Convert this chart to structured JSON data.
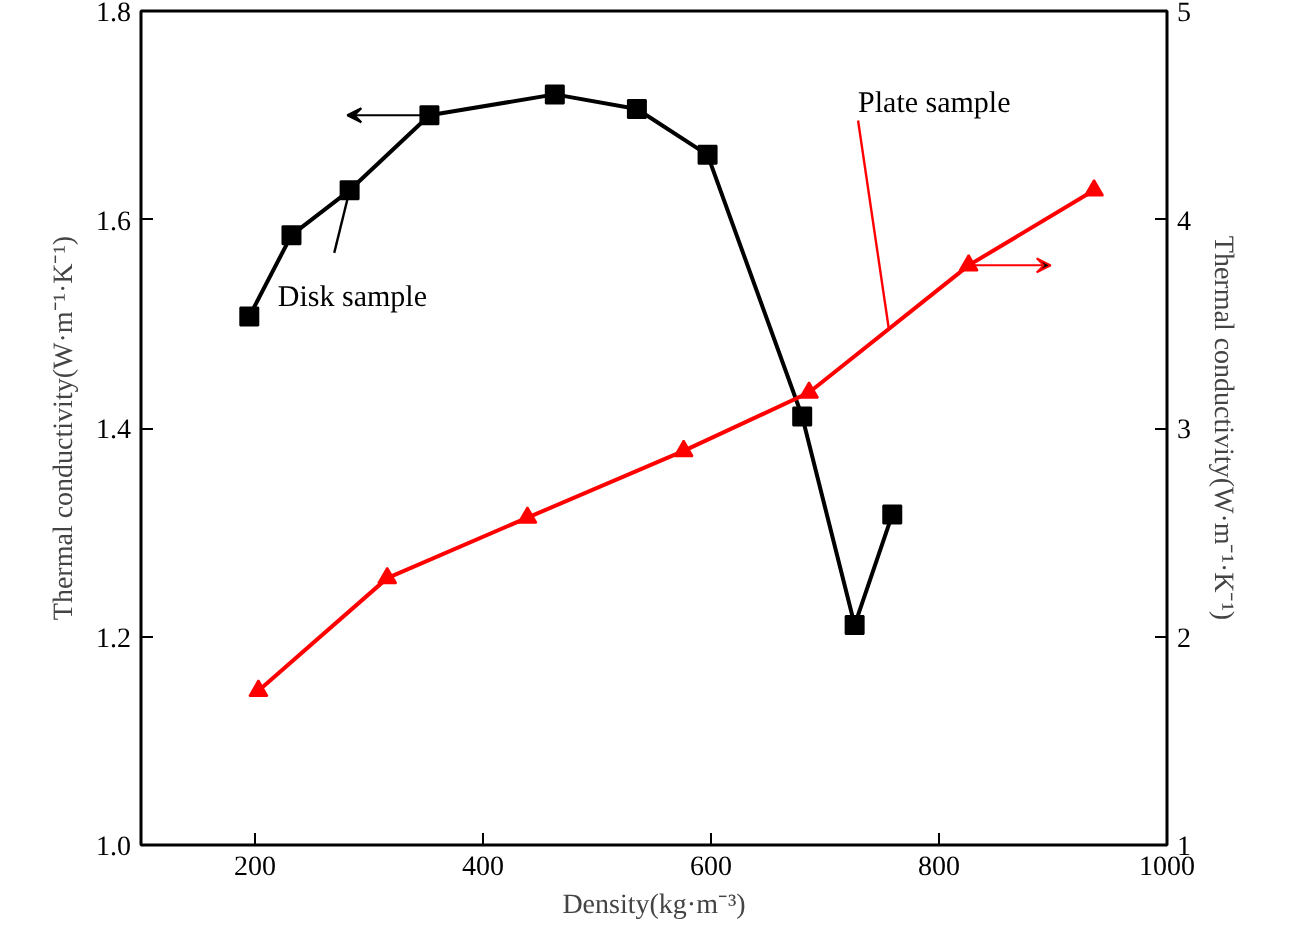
{
  "chart_data": {
    "type": "line",
    "xlabel": "Density(kg·m⁻³)",
    "ylabel": "Thermal conductivity(W·m⁻¹·K⁻¹)",
    "y2label": "Thermal conductivity(W·m⁻¹·K⁻¹)",
    "xlim": [
      100,
      1000
    ],
    "xticks": [
      200,
      400,
      600,
      800,
      1000
    ],
    "ylim": [
      1.0,
      1.8
    ],
    "yticks": [
      {
        "value": 1.0,
        "label": "1.0"
      },
      {
        "value": 1.2,
        "label": "1.2"
      },
      {
        "value": 1.4,
        "label": "1.4"
      },
      {
        "value": 1.6,
        "label": "1.6"
      },
      {
        "value": 1.8,
        "label": "1.8"
      }
    ],
    "y2lim": [
      1,
      5
    ],
    "y2ticks": [
      1,
      2,
      3,
      4,
      5
    ],
    "grid": false,
    "line_style": "solid",
    "series": [
      {
        "x": [
          195,
          232,
          283,
          353,
          463,
          535,
          597,
          680,
          726,
          759
        ],
        "values": [
          1.507,
          1.585,
          1.628,
          1.7,
          1.72,
          1.706,
          1.662,
          1.411,
          1.211,
          1.317
        ],
        "color": "#000000",
        "marker": "square"
      },
      {
        "x": [
          203,
          316,
          439,
          576,
          686,
          826,
          936
        ],
        "values": [
          1.74,
          2.28,
          2.57,
          2.89,
          3.17,
          3.78,
          4.14
        ],
        "color": "#ff0000",
        "marker": "triangle",
        "axis": "y2"
      }
    ],
    "annotations": [
      {
        "text": "Disk sample",
        "x": 283,
        "y": 1.628
      },
      {
        "text": "Plate sample",
        "x": 756,
        "y": 1.495
      }
    ]
  }
}
